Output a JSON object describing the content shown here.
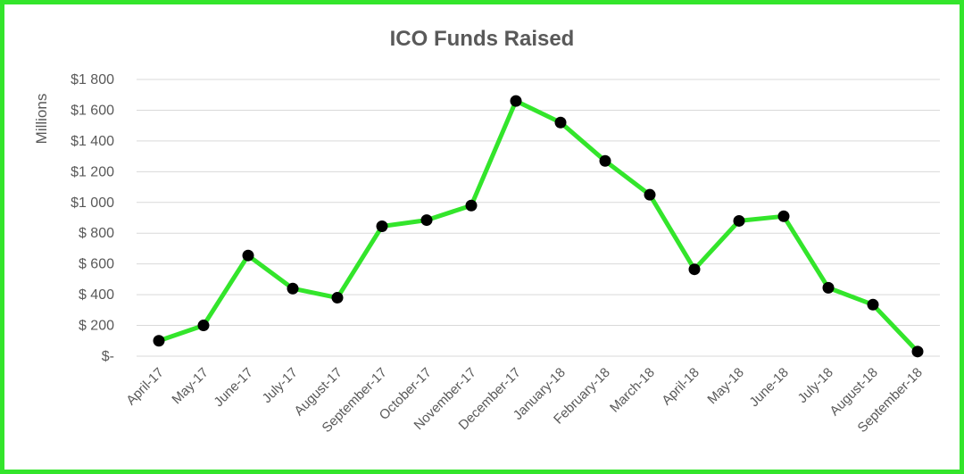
{
  "chart_data": {
    "type": "line",
    "title": "ICO Funds Raised",
    "ylabel": "Millions",
    "xlabel": "",
    "ylim": [
      0,
      1800
    ],
    "ytick_values": [
      0,
      200,
      400,
      600,
      800,
      1000,
      1200,
      1400,
      1600,
      1800
    ],
    "ytick_labels": [
      "$-",
      "$ 200",
      "$ 400",
      "$ 600",
      "$ 800",
      "$1 000",
      "$1 200",
      "$1 400",
      "$1 600",
      "$1 800"
    ],
    "categories": [
      "April-17",
      "May-17",
      "June-17",
      "July-17",
      "August-17",
      "September-17",
      "October-17",
      "November-17",
      "December-17",
      "January-18",
      "February-18",
      "March-18",
      "April-18",
      "May-18",
      "June-18",
      "July-18",
      "August-18",
      "September-18"
    ],
    "series": [
      {
        "name": "",
        "values": [
          100,
          200,
          655,
          440,
          380,
          845,
          885,
          980,
          1660,
          1520,
          1270,
          1050,
          565,
          880,
          910,
          445,
          335,
          30
        ]
      }
    ],
    "grid": true,
    "legend": "none",
    "colors": {
      "line": "#33e52b",
      "marker": "#000000",
      "frame": "#33e52b",
      "text": "#595959",
      "grid": "#d9d9d9"
    }
  }
}
